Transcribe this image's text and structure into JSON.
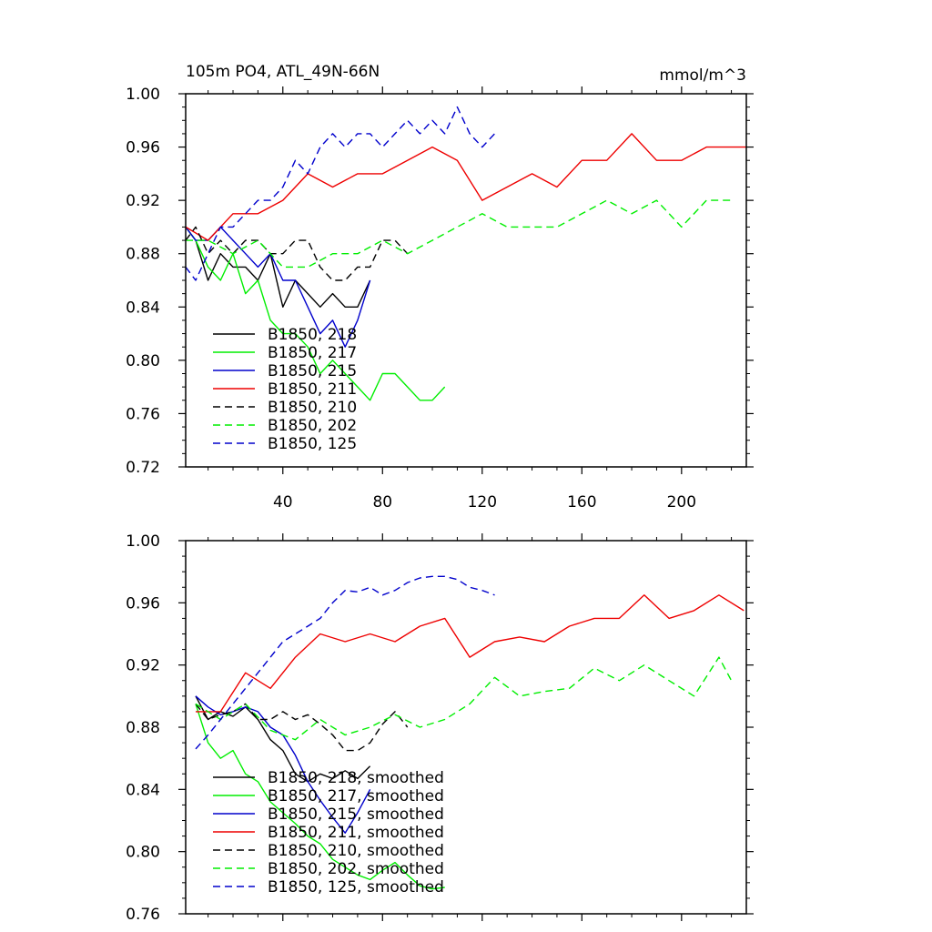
{
  "chart_data": [
    {
      "type": "line",
      "title_left": "105m PO4, ATL_49N-66N",
      "title_right": "mmol/m^3",
      "xlim": [
        1,
        226
      ],
      "ylim": [
        0.72,
        1.0
      ],
      "xticks": [
        40,
        80,
        120,
        160,
        200
      ],
      "xtick_labels": [
        "40",
        "80",
        "120",
        "160",
        "200"
      ],
      "yticks": [
        0.72,
        0.76,
        0.8,
        0.84,
        0.88,
        0.92,
        0.96,
        1.0
      ],
      "ytick_labels": [
        "0.72",
        "0.76",
        "0.80",
        "0.84",
        "0.88",
        "0.92",
        "0.96",
        "1.00"
      ],
      "grid": false,
      "legend_position": "bottom-left",
      "series": [
        {
          "name": "B1850, 218",
          "color": "#000000",
          "dash": "solid",
          "x": [
            1,
            5,
            10,
            15,
            20,
            25,
            30,
            35,
            40,
            45,
            50,
            55,
            60,
            65,
            70,
            75
          ],
          "y": [
            0.9,
            0.89,
            0.86,
            0.88,
            0.87,
            0.87,
            0.86,
            0.88,
            0.84,
            0.86,
            0.85,
            0.84,
            0.85,
            0.84,
            0.84,
            0.86
          ]
        },
        {
          "name": "B1850, 217",
          "color": "#00ee00",
          "dash": "solid",
          "x": [
            1,
            5,
            10,
            15,
            20,
            25,
            30,
            35,
            40,
            45,
            50,
            55,
            60,
            65,
            70,
            75,
            80,
            85,
            90,
            95,
            100,
            105
          ],
          "y": [
            0.9,
            0.89,
            0.87,
            0.86,
            0.88,
            0.85,
            0.86,
            0.83,
            0.82,
            0.82,
            0.81,
            0.79,
            0.8,
            0.79,
            0.78,
            0.77,
            0.79,
            0.79,
            0.78,
            0.77,
            0.77,
            0.78
          ]
        },
        {
          "name": "B1850, 215",
          "color": "#0000cc",
          "dash": "solid",
          "x": [
            1,
            5,
            10,
            15,
            20,
            25,
            30,
            35,
            40,
            45,
            50,
            55,
            60,
            65,
            70,
            75
          ],
          "y": [
            0.9,
            0.89,
            0.89,
            0.9,
            0.89,
            0.88,
            0.87,
            0.88,
            0.86,
            0.86,
            0.84,
            0.82,
            0.83,
            0.81,
            0.83,
            0.86
          ]
        },
        {
          "name": "B1850, 211",
          "color": "#ee0000",
          "dash": "solid",
          "x": [
            1,
            10,
            20,
            30,
            40,
            50,
            60,
            70,
            80,
            90,
            100,
            110,
            120,
            130,
            140,
            150,
            160,
            170,
            180,
            190,
            200,
            210,
            220,
            226
          ],
          "y": [
            0.9,
            0.89,
            0.91,
            0.91,
            0.92,
            0.94,
            0.93,
            0.94,
            0.94,
            0.95,
            0.96,
            0.95,
            0.92,
            0.93,
            0.94,
            0.93,
            0.95,
            0.95,
            0.97,
            0.95,
            0.95,
            0.96,
            0.96,
            0.96
          ]
        },
        {
          "name": "B1850, 210",
          "color": "#000000",
          "dash": "dashed",
          "x": [
            1,
            5,
            10,
            15,
            20,
            25,
            30,
            35,
            40,
            45,
            50,
            55,
            60,
            65,
            70,
            75,
            80,
            85,
            90
          ],
          "y": [
            0.89,
            0.9,
            0.88,
            0.89,
            0.88,
            0.89,
            0.89,
            0.88,
            0.88,
            0.89,
            0.89,
            0.87,
            0.86,
            0.86,
            0.87,
            0.87,
            0.89,
            0.89,
            0.88
          ]
        },
        {
          "name": "B1850, 202",
          "color": "#00ee00",
          "dash": "dashed",
          "x": [
            1,
            10,
            20,
            30,
            40,
            50,
            60,
            70,
            80,
            90,
            100,
            110,
            120,
            130,
            140,
            150,
            160,
            170,
            180,
            190,
            200,
            210,
            220
          ],
          "y": [
            0.89,
            0.89,
            0.88,
            0.89,
            0.87,
            0.87,
            0.88,
            0.88,
            0.89,
            0.88,
            0.89,
            0.9,
            0.91,
            0.9,
            0.9,
            0.9,
            0.91,
            0.92,
            0.91,
            0.92,
            0.9,
            0.92,
            0.92
          ]
        },
        {
          "name": "B1850, 125",
          "color": "#0000cc",
          "dash": "dashed",
          "x": [
            1,
            5,
            10,
            15,
            20,
            25,
            30,
            35,
            40,
            45,
            50,
            55,
            60,
            65,
            70,
            75,
            80,
            85,
            90,
            95,
            100,
            105,
            110,
            115,
            120,
            125
          ],
          "y": [
            0.87,
            0.86,
            0.88,
            0.9,
            0.9,
            0.91,
            0.92,
            0.92,
            0.93,
            0.95,
            0.94,
            0.96,
            0.97,
            0.96,
            0.97,
            0.97,
            0.96,
            0.97,
            0.98,
            0.97,
            0.98,
            0.97,
            0.99,
            0.97,
            0.96,
            0.97
          ]
        }
      ]
    },
    {
      "type": "line",
      "xlim": [
        1,
        226
      ],
      "ylim": [
        0.76,
        1.0
      ],
      "xticks": [
        40,
        80,
        120,
        160,
        200
      ],
      "yticks": [
        0.76,
        0.8,
        0.84,
        0.88,
        0.92,
        0.96,
        1.0
      ],
      "ytick_labels": [
        "0.76",
        "0.80",
        "0.84",
        "0.88",
        "0.92",
        "0.96",
        "1.00"
      ],
      "grid": false,
      "legend_position": "bottom-left",
      "series": [
        {
          "name": "B1850, 218, smoothed",
          "color": "#000000",
          "dash": "solid",
          "x": [
            5,
            10,
            15,
            20,
            25,
            30,
            35,
            40,
            45,
            50,
            55,
            60,
            65,
            70,
            75
          ],
          "y": [
            0.9,
            0.885,
            0.89,
            0.887,
            0.893,
            0.885,
            0.872,
            0.865,
            0.85,
            0.845,
            0.85,
            0.847,
            0.852,
            0.847,
            0.855
          ]
        },
        {
          "name": "B1850, 217, smoothed",
          "color": "#00ee00",
          "dash": "solid",
          "x": [
            5,
            10,
            15,
            20,
            25,
            30,
            35,
            40,
            45,
            50,
            55,
            60,
            65,
            70,
            75,
            80,
            85,
            90,
            95,
            100,
            105
          ],
          "y": [
            0.895,
            0.87,
            0.86,
            0.865,
            0.85,
            0.845,
            0.832,
            0.825,
            0.818,
            0.81,
            0.805,
            0.795,
            0.79,
            0.785,
            0.782,
            0.788,
            0.793,
            0.785,
            0.778,
            0.776,
            0.777
          ]
        },
        {
          "name": "B1850, 215, smoothed",
          "color": "#0000cc",
          "dash": "solid",
          "x": [
            5,
            10,
            15,
            20,
            25,
            30,
            35,
            40,
            45,
            50,
            55,
            60,
            65,
            70,
            75
          ],
          "y": [
            0.9,
            0.893,
            0.888,
            0.89,
            0.893,
            0.89,
            0.88,
            0.875,
            0.862,
            0.845,
            0.833,
            0.822,
            0.812,
            0.825,
            0.84
          ]
        },
        {
          "name": "B1850, 211, smoothed",
          "color": "#ee0000",
          "dash": "solid",
          "x": [
            5,
            15,
            25,
            35,
            45,
            55,
            65,
            75,
            85,
            95,
            105,
            115,
            125,
            135,
            145,
            155,
            165,
            175,
            185,
            195,
            205,
            215,
            225
          ],
          "y": [
            0.89,
            0.89,
            0.915,
            0.905,
            0.925,
            0.94,
            0.935,
            0.94,
            0.935,
            0.945,
            0.95,
            0.925,
            0.935,
            0.938,
            0.935,
            0.945,
            0.95,
            0.95,
            0.965,
            0.95,
            0.955,
            0.965,
            0.955
          ]
        },
        {
          "name": "B1850, 210, smoothed",
          "color": "#000000",
          "dash": "dashed",
          "x": [
            5,
            10,
            15,
            20,
            25,
            30,
            35,
            40,
            45,
            50,
            55,
            60,
            65,
            70,
            75,
            80,
            85,
            90
          ],
          "y": [
            0.895,
            0.885,
            0.888,
            0.89,
            0.895,
            0.885,
            0.885,
            0.89,
            0.885,
            0.888,
            0.882,
            0.875,
            0.865,
            0.865,
            0.87,
            0.882,
            0.89,
            0.88
          ]
        },
        {
          "name": "B1850, 202, smoothed",
          "color": "#00ee00",
          "dash": "dashed",
          "x": [
            5,
            15,
            25,
            35,
            45,
            55,
            65,
            75,
            85,
            95,
            105,
            115,
            125,
            135,
            145,
            155,
            165,
            175,
            185,
            195,
            205,
            215,
            220
          ],
          "y": [
            0.895,
            0.885,
            0.895,
            0.878,
            0.872,
            0.885,
            0.875,
            0.88,
            0.888,
            0.88,
            0.885,
            0.895,
            0.912,
            0.9,
            0.903,
            0.905,
            0.918,
            0.91,
            0.92,
            0.91,
            0.9,
            0.925,
            0.91
          ]
        },
        {
          "name": "B1850, 125, smoothed",
          "color": "#0000cc",
          "dash": "dashed",
          "x": [
            5,
            10,
            15,
            20,
            25,
            30,
            35,
            40,
            45,
            50,
            55,
            60,
            65,
            70,
            75,
            80,
            85,
            90,
            95,
            100,
            105,
            110,
            115,
            120,
            125
          ],
          "y": [
            0.866,
            0.875,
            0.885,
            0.895,
            0.905,
            0.915,
            0.925,
            0.935,
            0.94,
            0.945,
            0.95,
            0.96,
            0.968,
            0.967,
            0.97,
            0.965,
            0.968,
            0.973,
            0.976,
            0.977,
            0.977,
            0.975,
            0.97,
            0.968,
            0.965
          ]
        }
      ]
    }
  ]
}
